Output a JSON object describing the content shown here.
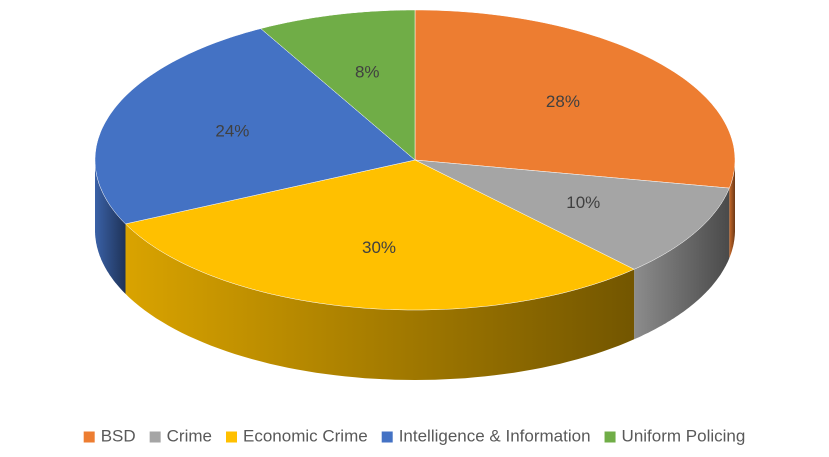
{
  "chart_data": {
    "type": "pie",
    "categories": [
      "BSD",
      "Crime",
      "Economic Crime",
      "Intelligence & Information",
      "Uniform Policing"
    ],
    "values": [
      28,
      10,
      30,
      24,
      8
    ],
    "value_labels": [
      "28%",
      "10%",
      "30%",
      "24%",
      "8%"
    ],
    "colors": [
      "#ED7D31",
      "#A5A5A5",
      "#FFC000",
      "#4472C4",
      "#70AD47"
    ],
    "legend": "bottom"
  }
}
